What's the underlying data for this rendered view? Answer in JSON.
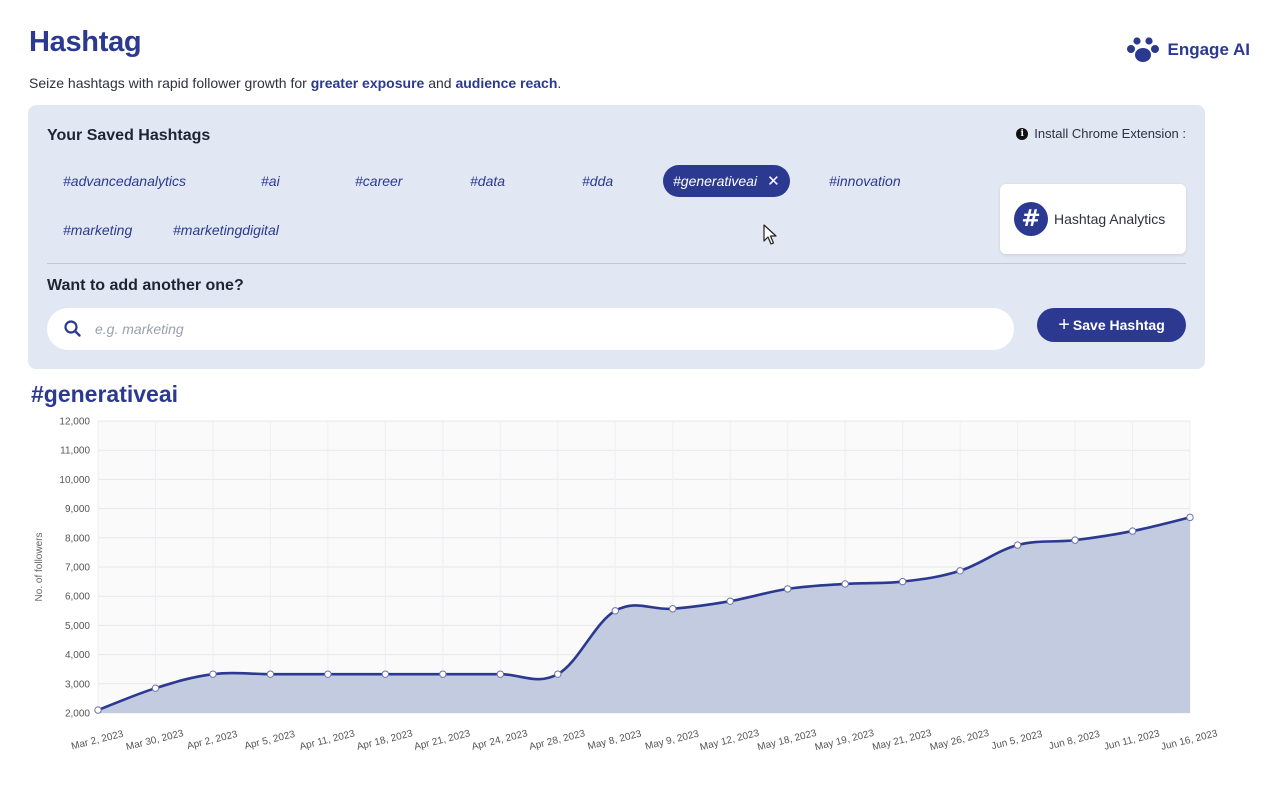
{
  "header": {
    "title": "Hashtag",
    "subtitle_prefix": "Seize hashtags with rapid follower growth for ",
    "subtitle_em1": "greater exposure",
    "subtitle_mid": " and ",
    "subtitle_em2": "audience reach",
    "subtitle_suffix": ".",
    "brand": "Engage AI",
    "brand_icon": "paw-icon"
  },
  "saved": {
    "heading": "Your Saved Hashtags",
    "install_label": "Install Chrome Extension :",
    "tags": [
      "#advancedanalytics",
      "#ai",
      "#career",
      "#data",
      "#dda",
      "#generativeai",
      "#innovation",
      "#marketing",
      "#marketingdigital"
    ],
    "active_tag": "#generativeai",
    "remove_symbol": "✕",
    "extension_name": "Hashtag Analytics"
  },
  "add": {
    "heading": "Want to add another one?",
    "placeholder": "e.g. marketing",
    "value": "",
    "save_label": "Save Hashtag",
    "save_plus": "+"
  },
  "chart_title": "#generativeai",
  "colors": {
    "primary": "#2b3990",
    "panel": "#e2e8f3",
    "area_fill": "#c3cbe1",
    "line": "#2b3990"
  },
  "chart_data": {
    "type": "area",
    "title": "#generativeai",
    "xlabel": "",
    "ylabel": "No. of followers",
    "ylim": [
      2000,
      12000
    ],
    "yticks": [
      2000,
      3000,
      4000,
      5000,
      6000,
      7000,
      8000,
      9000,
      10000,
      11000,
      12000
    ],
    "ytick_labels": [
      "2,000",
      "3,000",
      "4,000",
      "5,000",
      "6,000",
      "7,000",
      "8,000",
      "9,000",
      "10,000",
      "11,000",
      "12,000"
    ],
    "grid": true,
    "categories": [
      "Mar 2, 2023",
      "Mar 30, 2023",
      "Apr 2, 2023",
      "Apr 5, 2023",
      "Apr 11, 2023",
      "Apr 18, 2023",
      "Apr 21, 2023",
      "Apr 24, 2023",
      "Apr 28, 2023",
      "May 8, 2023",
      "May 9, 2023",
      "May 12, 2023",
      "May 18, 2023",
      "May 19, 2023",
      "May 21, 2023",
      "May 26, 2023",
      "Jun 5, 2023",
      "Jun 8, 2023",
      "Jun 11, 2023",
      "Jun 16, 2023"
    ],
    "values": [
      2100,
      2850,
      3330,
      3330,
      3330,
      3330,
      3330,
      3330,
      3330,
      5500,
      5570,
      5830,
      6250,
      6420,
      6500,
      6870,
      7750,
      7920,
      8230,
      8700
    ]
  }
}
